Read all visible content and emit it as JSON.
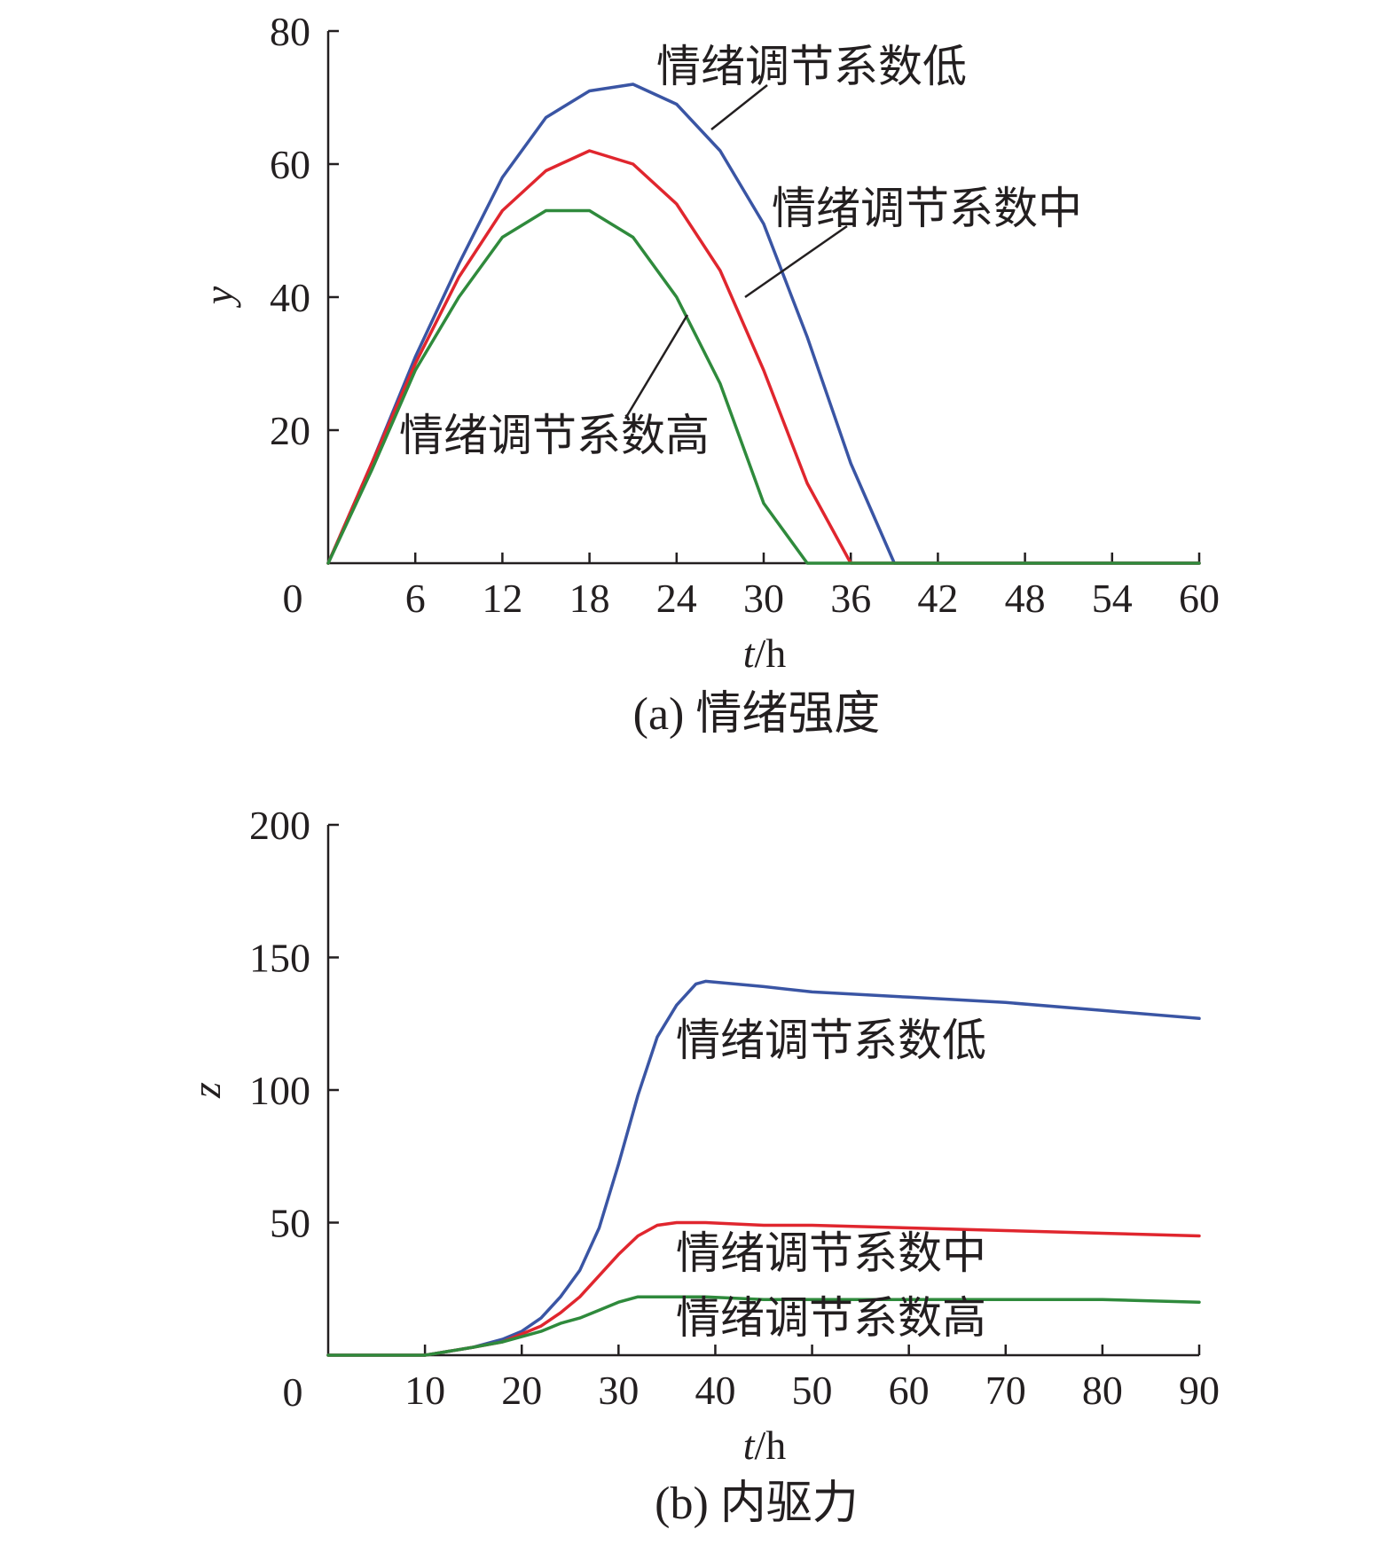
{
  "chart_data": [
    {
      "type": "line",
      "caption": "(a) 情绪强度",
      "xlabel": "t/h",
      "ylabel": "y",
      "xlim": [
        0,
        60
      ],
      "ylim": [
        0,
        80
      ],
      "x_ticks": [
        0,
        6,
        12,
        18,
        24,
        30,
        36,
        42,
        48,
        54,
        60
      ],
      "y_ticks": [
        20,
        40,
        60,
        80
      ],
      "grid": false,
      "x": [
        0,
        3,
        6,
        9,
        12,
        15,
        18,
        21,
        24,
        27,
        30,
        33,
        36,
        39,
        42,
        48,
        54,
        60
      ],
      "series": [
        {
          "name": "情绪调节系数低",
          "color": "#3a55a4",
          "values": [
            0,
            15,
            31,
            45,
            58,
            67,
            71,
            72,
            69,
            62,
            51,
            34,
            15,
            0,
            0,
            0,
            0,
            0
          ]
        },
        {
          "name": "情绪调节系数中",
          "color": "#e0262e",
          "values": [
            0,
            15,
            30,
            43,
            53,
            59,
            62,
            60,
            54,
            44,
            29,
            12,
            0,
            0,
            0,
            0,
            0,
            0
          ]
        },
        {
          "name": "情绪调节系数高",
          "color": "#2f8a3c",
          "values": [
            0,
            14,
            29,
            40,
            49,
            53,
            53,
            49,
            40,
            27,
            9,
            0,
            0,
            0,
            0,
            0,
            0,
            0
          ]
        }
      ]
    },
    {
      "type": "line",
      "caption": "(b) 内驱力",
      "xlabel": "t/h",
      "ylabel": "z",
      "xlim": [
        0,
        90
      ],
      "ylim": [
        0,
        200
      ],
      "x_ticks": [
        0,
        10,
        20,
        30,
        40,
        50,
        60,
        70,
        80,
        90
      ],
      "y_ticks": [
        50,
        100,
        150,
        200
      ],
      "grid": false,
      "x": [
        0,
        5,
        10,
        15,
        18,
        20,
        22,
        24,
        26,
        28,
        30,
        32,
        34,
        36,
        38,
        39,
        45,
        50,
        60,
        70,
        80,
        90
      ],
      "series": [
        {
          "name": "情绪调节系数低",
          "color": "#3a55a4",
          "values": [
            0,
            0,
            0,
            3,
            6,
            9,
            14,
            22,
            32,
            48,
            72,
            98,
            120,
            132,
            140,
            141,
            139,
            137,
            135,
            133,
            130,
            127
          ]
        },
        {
          "name": "情绪调节系数中",
          "color": "#e0262e",
          "values": [
            0,
            0,
            0,
            3,
            5,
            8,
            11,
            16,
            22,
            30,
            38,
            45,
            49,
            50,
            50,
            50,
            49,
            49,
            48,
            47,
            46,
            45
          ]
        },
        {
          "name": "情绪调节系数高",
          "color": "#2f8a3c",
          "values": [
            0,
            0,
            0,
            3,
            5,
            7,
            9,
            12,
            14,
            17,
            20,
            22,
            22,
            22,
            22,
            22,
            21,
            21,
            21,
            21,
            21,
            20
          ]
        }
      ]
    }
  ]
}
